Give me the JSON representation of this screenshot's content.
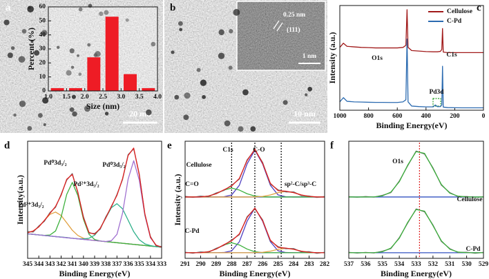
{
  "panels": {
    "labels": [
      "a",
      "b",
      "c",
      "d",
      "e",
      "f"
    ],
    "a": {
      "scale": "20 nm"
    },
    "b": {
      "scale": "10 nm",
      "inset_spacing": "0.25 nm",
      "inset_plane": "(111)",
      "inset_scale": "1 nm"
    }
  },
  "chart_data": [
    {
      "type": "histogram",
      "xlabel": "Size (nm)",
      "ylabel": "Percent (%)",
      "bins": [
        1.0,
        1.5,
        2.0,
        2.5,
        3.0,
        3.5,
        4.0
      ],
      "values": [
        2,
        2,
        24,
        53,
        12,
        2
      ],
      "color": "#ee1c25",
      "xlim": [
        1.0,
        4.0
      ],
      "ylim": [
        0,
        60
      ],
      "xticks": [
        {
          "value": 1.0,
          "label": "1.0"
        },
        {
          "value": 1.5,
          "label": "1.5"
        },
        {
          "value": 2.0,
          "label": "2.0"
        },
        {
          "value": 2.5,
          "label": "2.5"
        },
        {
          "value": 3.0,
          "label": "3.0"
        },
        {
          "value": 3.5,
          "label": "3.5"
        },
        {
          "value": 4.0,
          "label": "4.0"
        }
      ],
      "yticks": [
        0,
        10,
        20,
        30,
        40,
        50,
        60
      ]
    },
    {
      "type": "line",
      "xlabel": "Binding Energy(eV)",
      "ylabel": "Intensity (a.u.)",
      "x": [
        1000,
        975,
        950,
        900,
        850,
        800,
        750,
        700,
        650,
        600,
        560,
        540,
        532,
        525,
        500,
        450,
        400,
        350,
        335,
        320,
        300,
        290,
        285,
        280,
        250,
        200,
        150,
        100,
        50,
        0
      ],
      "xlim": [
        1000,
        0
      ],
      "ylim": [
        0,
        100
      ],
      "xticks": [
        1000,
        800,
        600,
        400,
        200,
        0
      ],
      "legend": "upper right",
      "series": [
        {
          "name": "Cellulose",
          "color": "#a01818",
          "values": [
            60,
            64,
            61,
            60.5,
            60,
            59.8,
            59.5,
            59.5,
            59.5,
            59.5,
            60,
            62,
            96,
            60,
            57,
            56.5,
            56,
            55.8,
            55.8,
            55.8,
            56.2,
            58,
            78,
            55.5,
            55,
            55,
            55,
            55,
            55,
            55
          ]
        },
        {
          "name": "C-Pd",
          "color": "#2a6ab0",
          "values": [
            8,
            12,
            8.5,
            8,
            7.8,
            7.6,
            7.5,
            7.5,
            7.4,
            7.4,
            8,
            10,
            68,
            8,
            4,
            3.5,
            3.2,
            3.2,
            5,
            3.4,
            3.5,
            5,
            42,
            3,
            2.5,
            2.4,
            2.3,
            2.3,
            2.3,
            2.3
          ]
        }
      ],
      "annotations": [
        "O1s",
        "C1s",
        "Pd3d"
      ]
    },
    {
      "type": "line",
      "xlabel": "Binding Energy(eV)",
      "ylabel": "Intensity(a.u.)",
      "x": [
        345,
        344.5,
        344,
        343.5,
        343,
        342.5,
        342,
        341.5,
        341,
        340.5,
        340,
        339.5,
        339,
        338.5,
        338,
        337.5,
        337,
        336.5,
        336,
        335.5,
        335,
        334.5,
        334,
        333.5,
        333
      ],
      "xlim": [
        345,
        333
      ],
      "ylim": [
        0,
        105
      ],
      "xticks": [
        345,
        344,
        343,
        342,
        341,
        340,
        339,
        338,
        337,
        336,
        335,
        334,
        333
      ],
      "series": [
        {
          "color": "#3050c0",
          "values": [
            22,
            21.5,
            21,
            20.5,
            20,
            19.5,
            19,
            18.5,
            18,
            17.5,
            17,
            16.5,
            16,
            15.5,
            15,
            14.5,
            14,
            13.5,
            13,
            12.5,
            12,
            11.5,
            11,
            10.5,
            10
          ]
        },
        {
          "color": "#e0a040",
          "values": [
            23,
            24.5,
            28.2,
            33.9,
            39.4,
            41.5,
            38.4,
            31.9,
            25.2,
            20.5,
            18,
            16.7,
            16,
            15.5,
            15,
            14.5,
            14,
            13.5,
            13,
            12.5,
            12,
            11.5,
            11,
            10.5,
            10
          ]
        },
        {
          "color": "#3cb03c",
          "values": [
            22,
            21.5,
            21,
            20.6,
            20.9,
            24.5,
            37,
            57.3,
            68,
            56.3,
            35,
            21.5,
            16.9,
            15.5,
            15,
            14.5,
            14,
            13.5,
            13,
            12.5,
            12,
            11.5,
            11,
            10.5,
            10
          ]
        },
        {
          "color": "#2eb08a",
          "values": [
            22,
            21.5,
            21,
            20.5,
            20,
            19.5,
            19.1,
            18.7,
            18,
            17.6,
            17.4,
            18,
            20.7,
            26.9,
            36.2,
            45.4,
            49,
            44.4,
            34.2,
            23.9,
            16.7,
            13,
            11.4,
            10.5,
            10
          ]
        },
        {
          "color": "#a070d0",
          "values": [
            22,
            21.5,
            21,
            20.5,
            20,
            19.5,
            19,
            18.5,
            18,
            17.5,
            17,
            16.5,
            16,
            15.5,
            15.1,
            15.8,
            21.5,
            40.5,
            71,
            87.5,
            70,
            38.5,
            18.5,
            11.8,
            10
          ]
        },
        {
          "color": "#707070",
          "values": [
            24,
            23.6,
            29,
            33.2,
            41.1,
            45.8,
            57.4,
            70.1,
            76,
            58.6,
            37.3,
            22.5,
            22.3,
            26.1,
            37.2,
            45.9,
            57.3,
            70.6,
            93,
            98.1,
            75.6,
            39.2,
            19.6,
            11.2,
            10.6
          ]
        },
        {
          "color": "#e02020",
          "values": [
            23,
            24.5,
            28.2,
            34,
            40.3,
            46.5,
            56.5,
            70.9,
            75.2,
            59.4,
            36.4,
            23.2,
            21.6,
            26.9,
            36.3,
            46.7,
            56.5,
            71.4,
            92.2,
            98.9,
            74.7,
            40,
            18.9,
            11.8,
            10
          ]
        }
      ],
      "annotations": [
        "Pd²⁺3d₃/₂",
        "Pd⁰3d₃/₂",
        "Pd²⁺3d₅/₂",
        "Pd⁰3d₅/₂"
      ]
    },
    {
      "type": "line",
      "xlabel": "Binding Energy(eV)",
      "ylabel": "Intensity (a.u.)",
      "x": [
        291,
        290.5,
        290,
        289.5,
        289,
        288.5,
        288,
        287.5,
        287,
        286.5,
        286,
        285.5,
        285,
        284.5,
        284,
        283.5,
        283,
        282.5,
        282
      ],
      "xlim": [
        291,
        282
      ],
      "ylim": [
        0,
        105
      ],
      "xticks": [
        291,
        290,
        289,
        288,
        287,
        286,
        285,
        284,
        283,
        282
      ],
      "vlines": [
        288,
        286.5,
        284.8
      ],
      "vline_color": "#000000",
      "series": [
        {
          "color": "#3050c0",
          "values": [
            55,
            55,
            55,
            55,
            55,
            55,
            55,
            55,
            55,
            55,
            55,
            55,
            55,
            55,
            55,
            55,
            55,
            55,
            55
          ]
        },
        {
          "color": "#5040c0",
          "values": [
            55,
            55,
            55,
            55,
            55,
            55.2,
            56.8,
            65.5,
            84.7,
            97,
            84.7,
            65.5,
            56.8,
            55.2,
            55,
            55,
            55,
            55,
            55
          ]
        },
        {
          "color": "#3cb03c",
          "values": [
            55,
            55,
            55.1,
            55.8,
            57.9,
            61.2,
            63,
            61.2,
            57.9,
            55.8,
            55.1,
            55,
            55,
            55,
            55,
            55,
            55,
            55,
            55
          ]
        },
        {
          "color": "#e0a040",
          "values": [
            55,
            55,
            55,
            55,
            55,
            55,
            55,
            55,
            55,
            55.1,
            55.5,
            56.8,
            58.9,
            60,
            58.9,
            56.8,
            55.5,
            55.1,
            55
          ]
        },
        {
          "color": "#707070",
          "values": [
            55.6,
            54.7,
            55.8,
            55.2,
            58.6,
            60.8,
            65.5,
            71,
            88.3,
            97.2,
            86,
            66.6,
            61.4,
            59.5,
            59.6,
            56.2,
            55.9,
            54.6,
            55.4
          ]
        },
        {
          "color": "#e02020",
          "values": [
            55,
            55,
            55.1,
            55.8,
            57.9,
            61.4,
            64.8,
            71.7,
            87.6,
            97.9,
            85.3,
            67.3,
            60.7,
            60.2,
            58.9,
            56.8,
            55.5,
            55.1,
            55
          ]
        },
        {
          "color": "#3050c0",
          "values": [
            5,
            5,
            5,
            5,
            5,
            5,
            5,
            5,
            5,
            5,
            5,
            5,
            5,
            5,
            5,
            5,
            5,
            5,
            5
          ]
        },
        {
          "color": "#5040c0",
          "values": [
            5,
            5,
            5,
            5,
            5,
            5.2,
            6.7,
            14.9,
            33.3,
            45,
            33.3,
            14.9,
            6.7,
            5.2,
            5,
            5,
            5,
            5,
            5
          ]
        },
        {
          "color": "#3cb03c",
          "values": [
            5,
            5,
            5.1,
            5.9,
            8.3,
            12,
            14,
            12,
            8.3,
            5.9,
            5.1,
            5,
            5,
            5,
            5,
            5,
            5,
            5,
            5
          ]
        },
        {
          "color": "#e0a040",
          "values": [
            5,
            5,
            5,
            5,
            5,
            5,
            5,
            5,
            5,
            5.1,
            5.4,
            6.4,
            8.1,
            9,
            8.1,
            6.4,
            5.4,
            5.1,
            5
          ]
        },
        {
          "color": "#707070",
          "values": [
            5.5,
            4.6,
            5.8,
            5.3,
            9,
            11.6,
            16.4,
            21.2,
            37.3,
            44.4,
            34.5,
            15.6,
            10.5,
            8.6,
            8.8,
            5.8,
            6,
            4.5,
            5.4
          ]
        },
        {
          "color": "#e02020",
          "values": [
            5,
            5,
            5.1,
            5.9,
            8.3,
            12.2,
            15.7,
            21.9,
            36.6,
            45.1,
            33.8,
            16.3,
            9.8,
            9.2,
            8.1,
            6.4,
            5.4,
            5.1,
            5
          ]
        }
      ],
      "annotations": [
        "C1s",
        "C-O",
        "Cellulose",
        "C=O",
        "sp²-C/sp³-C",
        "C-Pd"
      ]
    },
    {
      "type": "line",
      "xlabel": "Binding Energy(eV)",
      "x": [
        537,
        536.5,
        536,
        535.5,
        535,
        534.5,
        534,
        533.5,
        533,
        532.5,
        532,
        531.5,
        531,
        530.5,
        530,
        529.5,
        529
      ],
      "xlim": [
        537,
        529
      ],
      "ylim": [
        0,
        105
      ],
      "xticks": [
        537,
        536,
        535,
        534,
        533,
        532,
        531,
        530,
        529
      ],
      "vlines": [
        532.8
      ],
      "vline_color": "#e02020",
      "series": [
        {
          "color": "#3050c0",
          "values": [
            55,
            55,
            55,
            55,
            55,
            55,
            55,
            55,
            55,
            55,
            55,
            55,
            55,
            55,
            55,
            55,
            55
          ]
        },
        {
          "color": "#707070",
          "values": [
            55.3,
            54.8,
            55.4,
            54.9,
            56.5,
            58.9,
            69.3,
            83,
            96.2,
            93.5,
            81.1,
            65.6,
            58.9,
            55.3,
            55.4,
            54.8,
            55.2
          ]
        },
        {
          "color": "#3cb03c",
          "values": [
            55,
            55,
            55,
            55.1,
            56,
            59.4,
            68.7,
            83.6,
            95.7,
            94.1,
            80.5,
            66.2,
            58.4,
            55.7,
            55.1,
            55,
            55
          ]
        },
        {
          "color": "#3050c0",
          "values": [
            5,
            5,
            5,
            5,
            5,
            5,
            5,
            5,
            5,
            5,
            5,
            5,
            5,
            5,
            5,
            5,
            5
          ]
        },
        {
          "color": "#707070",
          "values": [
            5.4,
            4.7,
            5.3,
            4.8,
            6.4,
            8.7,
            18.6,
            31.7,
            44.3,
            41.7,
            29.9,
            15.1,
            8.7,
            5.2,
            5.5,
            4.6,
            5.3
          ]
        },
        {
          "color": "#3cb03c",
          "values": [
            5,
            5,
            5,
            5.1,
            5.9,
            9.2,
            18,
            32.3,
            43.8,
            42.3,
            29.3,
            15.7,
            8.2,
            5.6,
            5.1,
            5,
            5
          ]
        }
      ],
      "annotations": [
        "O1s",
        "Cellulose",
        "C-Pd"
      ]
    }
  ]
}
